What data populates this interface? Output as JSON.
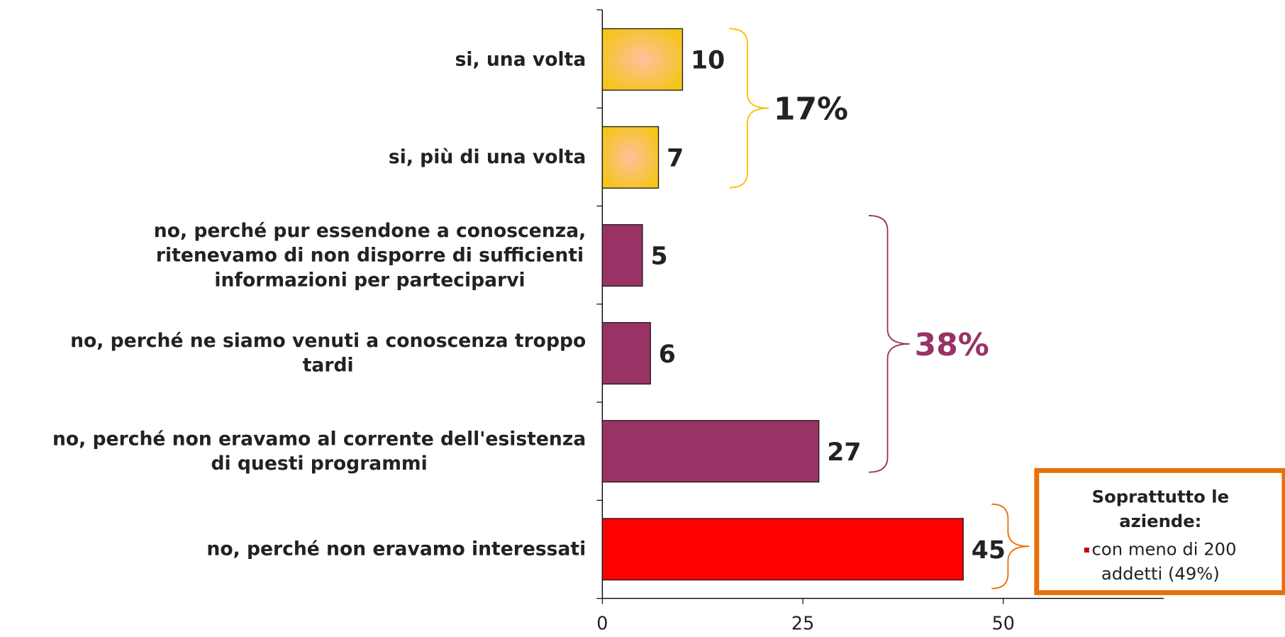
{
  "chart_data": {
    "type": "barh",
    "categories": [
      "si, una volta",
      "si, più di una volta",
      "no, perché pur essendone a conoscenza,\nritenevamo di non disporre di sufficienti\ninformazioni per parteciparvi",
      "no, perché ne siamo venuti a conoscenza troppo\ntardi",
      "no, perché non eravamo al corrente dell'esistenza\ndi questi programmi",
      "no, perché non eravamo interessati"
    ],
    "values": [
      10,
      7,
      5,
      6,
      27,
      45
    ],
    "colors": [
      "#f5c518",
      "#f5c518",
      "#993366",
      "#993366",
      "#993366",
      "#ff0000"
    ],
    "xlim": [
      0,
      70
    ],
    "xticks": [
      0,
      25,
      50
    ],
    "annotations": [
      {
        "text": "17%",
        "color": "#f5c400"
      },
      {
        "text": "38%",
        "color": "#993366"
      }
    ],
    "callout": {
      "title": "Soprattutto le aziende:",
      "bullet": "con meno di 200 addetti (49%)",
      "color": "#e8700a",
      "bullet_color": "#c00000"
    }
  }
}
